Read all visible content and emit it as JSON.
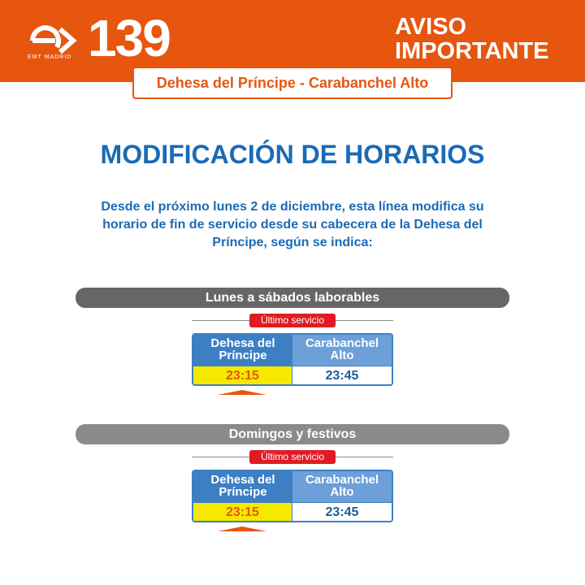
{
  "header": {
    "brand": "EMT MADRID",
    "line_number": "139",
    "notice": "AVISO IMPORTANTE",
    "route": "Dehesa del Príncipe - Carabanchel Alto",
    "color": "#e6560f"
  },
  "title": "MODIFICACIÓN DE HORARIOS",
  "description": "Desde el próximo lunes 2 de diciembre, esta línea modifica su horario de fin de servicio desde su cabecera de la Dehesa del Príncipe, según se indica:",
  "schedules": [
    {
      "day_type": "Lunes a sábados laborables",
      "label": "Último servicio",
      "col1": "Dehesa del Príncipe",
      "col2": "Carabanchel Alto",
      "time1": "23:15",
      "time2": "23:45"
    },
    {
      "day_type": "Domingos y festivos",
      "label": "Último servicio",
      "col1": "Dehesa del Príncipe",
      "col2": "Carabanchel Alto",
      "time1": "23:15",
      "time2": "23:45"
    }
  ]
}
